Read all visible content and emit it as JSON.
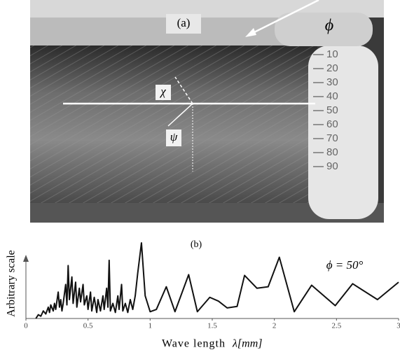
{
  "photo": {
    "panel_label": "(a)",
    "phi_symbol": "ϕ",
    "chi_symbol": "χ",
    "psi_symbol": "ψ",
    "scale_labels": [
      "10",
      "20",
      "30",
      "40",
      "50",
      "60",
      "70",
      "80",
      "90"
    ]
  },
  "chart_data": {
    "type": "line",
    "panel_label": "(b)",
    "ylabel": "Arbitrary scale",
    "xlabel": "Wave length",
    "xlabel_symbol": "λ[mm]",
    "annotation": "ϕ = 50°",
    "color": "#111111",
    "xlim": [
      0,
      3
    ],
    "xticks": [
      0,
      0.5,
      1,
      1.5,
      2,
      2.5,
      3
    ],
    "ylim": [
      0,
      100
    ],
    "x": [
      0.08,
      0.1,
      0.12,
      0.14,
      0.16,
      0.18,
      0.19,
      0.2,
      0.22,
      0.23,
      0.24,
      0.26,
      0.27,
      0.28,
      0.29,
      0.3,
      0.32,
      0.33,
      0.34,
      0.35,
      0.37,
      0.38,
      0.4,
      0.41,
      0.43,
      0.44,
      0.46,
      0.47,
      0.49,
      0.5,
      0.52,
      0.53,
      0.55,
      0.57,
      0.58,
      0.6,
      0.62,
      0.63,
      0.65,
      0.66,
      0.67,
      0.68,
      0.7,
      0.72,
      0.74,
      0.75,
      0.77,
      0.78,
      0.8,
      0.82,
      0.84,
      0.86,
      0.88,
      0.9,
      0.93,
      0.96,
      1.0,
      1.05,
      1.13,
      1.2,
      1.31,
      1.38,
      1.48,
      1.55,
      1.62,
      1.7,
      1.76,
      1.86,
      1.95,
      2.04,
      2.16,
      2.3,
      2.49,
      2.63,
      2.83,
      3.0
    ],
    "values": [
      0,
      5,
      3,
      10,
      6,
      15,
      8,
      18,
      10,
      20,
      12,
      35,
      15,
      25,
      10,
      20,
      45,
      18,
      70,
      25,
      55,
      20,
      48,
      15,
      40,
      22,
      45,
      18,
      30,
      12,
      35,
      10,
      28,
      8,
      25,
      10,
      30,
      12,
      40,
      15,
      77,
      10,
      20,
      8,
      30,
      12,
      45,
      10,
      20,
      8,
      25,
      12,
      30,
      60,
      100,
      30,
      9,
      12,
      42,
      9,
      58,
      9,
      28,
      23,
      14,
      16,
      57,
      40,
      42,
      81,
      9,
      44,
      17,
      46,
      25,
      48
    ]
  }
}
